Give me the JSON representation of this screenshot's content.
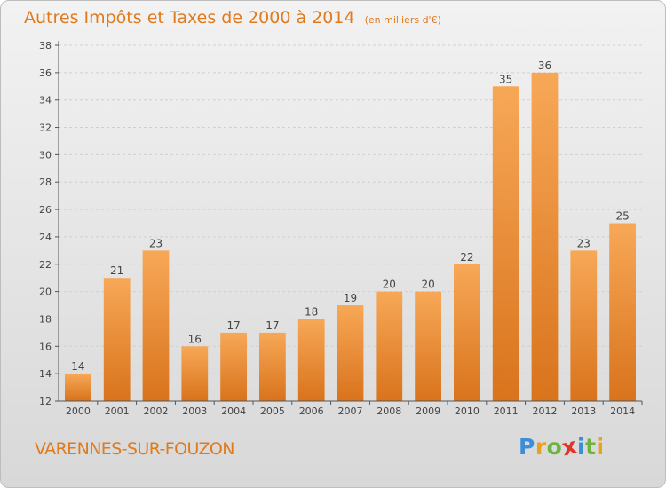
{
  "header": {
    "title": "Autres Impôts et Taxes de 2000 à 2014",
    "unit": "(en milliers d'€)"
  },
  "footer": {
    "commune": "VARENNES-SUR-FOUZON",
    "logo_letters": [
      {
        "char": "P",
        "color": "#3a8fd6"
      },
      {
        "char": "r",
        "color": "#e8a21e"
      },
      {
        "char": "o",
        "color": "#6cb33f"
      },
      {
        "char": "x",
        "color": "#e0342b"
      },
      {
        "char": "i",
        "color": "#3a8fd6"
      },
      {
        "char": "t",
        "color": "#6cb33f"
      },
      {
        "char": "i",
        "color": "#e8a21e"
      }
    ]
  },
  "colors": {
    "bar_top": "#f7a857",
    "bar_bottom": "#d9731c",
    "title": "#e07a1c",
    "axis": "#555555",
    "grid": "#d0d0d0"
  },
  "chart_data": {
    "type": "bar",
    "categories": [
      "2000",
      "2001",
      "2002",
      "2003",
      "2004",
      "2005",
      "2006",
      "2007",
      "2008",
      "2009",
      "2010",
      "2011",
      "2012",
      "2013",
      "2014"
    ],
    "values": [
      14,
      21,
      23,
      16,
      17,
      17,
      18,
      19,
      20,
      20,
      22,
      35,
      36,
      23,
      25
    ],
    "ylim": [
      12,
      38
    ],
    "yticks": [
      12,
      14,
      16,
      18,
      20,
      22,
      24,
      26,
      28,
      30,
      32,
      34,
      36,
      38
    ],
    "grid": "horizontal dashed",
    "legend": "none"
  }
}
